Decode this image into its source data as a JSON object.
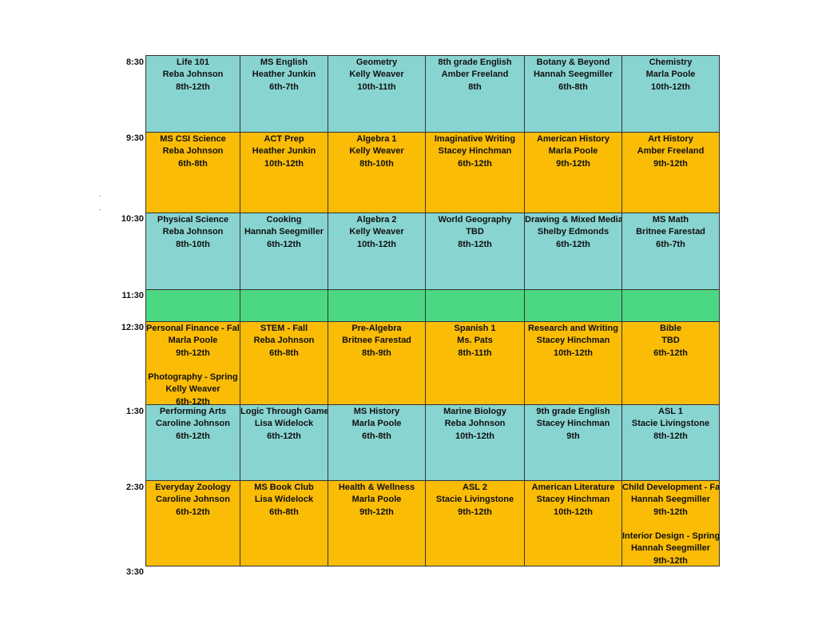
{
  "colors": {
    "teal": "#88d4d0",
    "orange": "#fbbc05",
    "green": "#4cd882"
  },
  "times": [
    "8:30",
    "9:30",
    "10:30",
    "11:30",
    "12:30",
    "1:30",
    "2:30",
    "3:30"
  ],
  "rows": [
    {
      "color": "teal",
      "cells": [
        [
          "Life 101",
          "Reba Johnson",
          "8th-12th"
        ],
        [
          "MS English",
          "Heather Junkin",
          "6th-7th"
        ],
        [
          "Geometry",
          "Kelly Weaver",
          "10th-11th"
        ],
        [
          "8th grade English",
          "Amber Freeland",
          "8th"
        ],
        [
          "Botany & Beyond",
          "Hannah Seegmiller",
          "6th-8th"
        ],
        [
          "Chemistry",
          "Marla Poole",
          "10th-12th"
        ]
      ]
    },
    {
      "color": "orange",
      "cells": [
        [
          "MS CSI Science",
          "Reba Johnson",
          "6th-8th"
        ],
        [
          "ACT Prep",
          "Heather Junkin",
          "10th-12th"
        ],
        [
          "Algebra 1",
          "Kelly Weaver",
          "8th-10th"
        ],
        [
          "Imaginative Writing",
          "Stacey Hinchman",
          "6th-12th"
        ],
        [
          "American History",
          "Marla Poole",
          "9th-12th"
        ],
        [
          "Art History",
          "Amber Freeland",
          "9th-12th"
        ]
      ]
    },
    {
      "color": "teal",
      "cells": [
        [
          "Physical Science",
          "Reba Johnson",
          "8th-10th"
        ],
        [
          "Cooking",
          "Hannah Seegmiller",
          "6th-12th"
        ],
        [
          "Algebra 2",
          "Kelly Weaver",
          "10th-12th"
        ],
        [
          "World Geography",
          "TBD",
          "8th-12th"
        ],
        [
          "Drawing & Mixed Media",
          "Shelby Edmonds",
          "6th-12th"
        ],
        [
          "MS Math",
          "Britnee Farestad",
          "6th-7th"
        ]
      ]
    },
    {
      "color": "green",
      "cells": [
        [],
        [],
        [],
        [],
        [],
        []
      ]
    },
    {
      "color": "orange",
      "cells": [
        [
          "Personal Finance - Fall",
          "Marla Poole",
          "9th-12th",
          "",
          "Photography - Spring",
          "Kelly Weaver",
          "6th-12th"
        ],
        [
          "STEM - Fall",
          "Reba Johnson",
          "6th-8th"
        ],
        [
          "Pre-Algebra",
          "Britnee Farestad",
          "8th-9th"
        ],
        [
          "Spanish 1",
          "Ms. Pats",
          "8th-11th"
        ],
        [
          "Research and Writing",
          "Stacey Hinchman",
          "10th-12th"
        ],
        [
          "Bible",
          "TBD",
          "6th-12th"
        ]
      ]
    },
    {
      "color": "teal",
      "cells": [
        [
          "Performing Arts",
          "Caroline Johnson",
          "6th-12th"
        ],
        [
          "Logic Through Games",
          "Lisa Widelock",
          "6th-12th"
        ],
        [
          "MS History",
          "Marla Poole",
          "6th-8th"
        ],
        [
          "Marine Biology",
          "Reba Johnson",
          "10th-12th"
        ],
        [
          "9th grade English",
          "Stacey Hinchman",
          "9th"
        ],
        [
          "ASL 1",
          "Stacie Livingstone",
          "8th-12th"
        ]
      ]
    },
    {
      "color": "orange",
      "cells": [
        [
          "Everyday Zoology",
          "Caroline Johnson",
          "6th-12th"
        ],
        [
          "MS Book Club",
          "Lisa Widelock",
          "6th-8th"
        ],
        [
          "Health & Wellness",
          "Marla Poole",
          "9th-12th"
        ],
        [
          "ASL 2",
          "Stacie Livingstone",
          "9th-12th"
        ],
        [
          "American Literature",
          "Stacey Hinchman",
          "10th-12th"
        ],
        [
          "Child Development - Fall",
          "Hannah Seegmiller",
          "9th-12th",
          "",
          "Interior Design - Spring",
          "Hannah Seegmiller",
          "9th-12th"
        ]
      ]
    }
  ]
}
